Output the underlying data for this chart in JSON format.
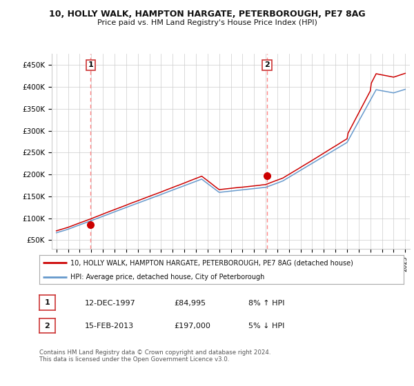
{
  "title1": "10, HOLLY WALK, HAMPTON HARGATE, PETERBOROUGH, PE7 8AG",
  "title2": "Price paid vs. HM Land Registry's House Price Index (HPI)",
  "ylabel_ticks": [
    "£50K",
    "£100K",
    "£150K",
    "£200K",
    "£250K",
    "£300K",
    "£350K",
    "£400K",
    "£450K"
  ],
  "ytick_vals": [
    50000,
    100000,
    150000,
    200000,
    250000,
    300000,
    350000,
    400000,
    450000
  ],
  "ylim": [
    30000,
    475000
  ],
  "xlim_start": 1994.6,
  "xlim_end": 2025.4,
  "sale1_date": 1997.95,
  "sale1_price": 84995,
  "sale1_label": "1",
  "sale2_date": 2013.12,
  "sale2_price": 197000,
  "sale2_label": "2",
  "vline1_x": 1997.95,
  "vline2_x": 2013.12,
  "legend_line1": "10, HOLLY WALK, HAMPTON HARGATE, PETERBOROUGH, PE7 8AG (detached house)",
  "legend_line2": "HPI: Average price, detached house, City of Peterborough",
  "table_row1": [
    "1",
    "12-DEC-1997",
    "£84,995",
    "8% ↑ HPI"
  ],
  "table_row2": [
    "2",
    "15-FEB-2013",
    "£197,000",
    "5% ↓ HPI"
  ],
  "footer": "Contains HM Land Registry data © Crown copyright and database right 2024.\nThis data is licensed under the Open Government Licence v3.0.",
  "color_red": "#cc0000",
  "color_blue": "#6699cc",
  "color_vline": "#ff8888",
  "background_color": "#ffffff",
  "grid_color": "#cccccc"
}
